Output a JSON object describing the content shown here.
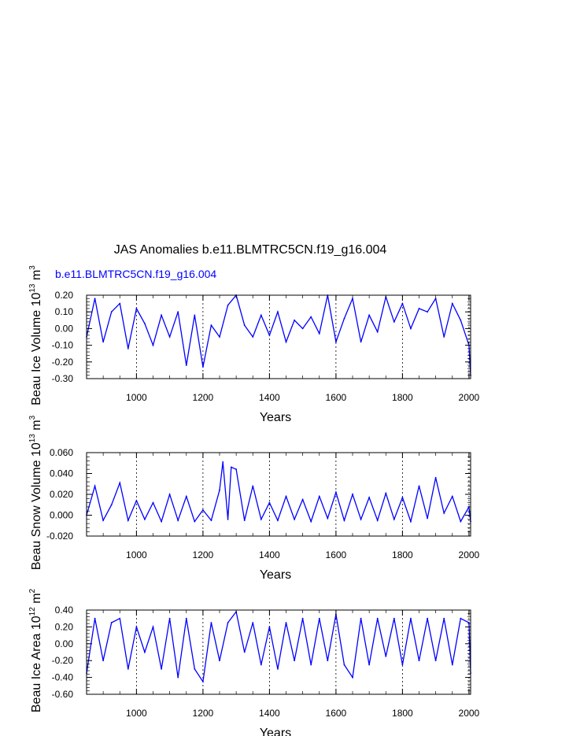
{
  "title": "JAS Anomalies b.e11.BLMTRC5CN.f19_g16.004",
  "series_name": "b.e11.BLMTRC5CN.f19_g16.004",
  "colors": {
    "series": "#0000ff",
    "axes": "#000000",
    "grid": "#000000"
  },
  "chart_data": [
    {
      "type": "line",
      "ylabel": "Beau Ice Volume 10",
      "ylabel_exp1": "13",
      "ylabel_unit": "m",
      "ylabel_exp2": "3",
      "xlabel": "Years",
      "xlim": [
        850,
        2005
      ],
      "ylim": [
        -0.3,
        0.2
      ],
      "yticks": [
        0.2,
        0.1,
        0.0,
        -0.1,
        -0.2,
        -0.3
      ],
      "ytick_labels": [
        "0.20",
        "0.10",
        "0.00",
        "-0.10",
        "-0.20",
        "-0.30"
      ],
      "xticks": [
        1000,
        1200,
        1400,
        1600,
        1800,
        2000
      ],
      "xtick_labels": [
        "1000",
        "1200",
        "1400",
        "1600",
        "1800",
        "2000"
      ],
      "grid": "dashed vertical at x ticks",
      "series": [
        {
          "name": "b.e11.BLMTRC5CN.f19_g16.004",
          "x": [
            850,
            875,
            900,
            925,
            950,
            975,
            1000,
            1025,
            1050,
            1075,
            1100,
            1125,
            1150,
            1175,
            1200,
            1225,
            1250,
            1275,
            1300,
            1325,
            1350,
            1375,
            1400,
            1425,
            1450,
            1475,
            1500,
            1525,
            1550,
            1575,
            1600,
            1625,
            1650,
            1675,
            1700,
            1725,
            1750,
            1775,
            1800,
            1825,
            1850,
            1875,
            1900,
            1925,
            1950,
            1975,
            2000,
            2005
          ],
          "y": [
            -0.05,
            0.18,
            -0.08,
            0.1,
            0.15,
            -0.12,
            0.12,
            0.03,
            -0.1,
            0.08,
            -0.05,
            0.1,
            -0.22,
            0.08,
            -0.23,
            0.02,
            -0.05,
            0.14,
            0.2,
            0.02,
            -0.05,
            0.08,
            -0.04,
            0.1,
            -0.08,
            0.05,
            0.0,
            0.07,
            -0.03,
            0.2,
            -0.08,
            0.06,
            0.18,
            -0.08,
            0.08,
            -0.02,
            0.19,
            0.04,
            0.15,
            0.0,
            0.12,
            0.1,
            0.18,
            -0.05,
            0.15,
            0.05,
            -0.1,
            -0.28
          ]
        }
      ]
    },
    {
      "type": "line",
      "ylabel": "Beau Snow Volume 10",
      "ylabel_exp1": "13",
      "ylabel_unit": "m",
      "ylabel_exp2": "3",
      "xlabel": "Years",
      "xlim": [
        850,
        2005
      ],
      "ylim": [
        -0.02,
        0.06
      ],
      "yticks": [
        0.06,
        0.04,
        0.02,
        0.0,
        -0.02
      ],
      "ytick_labels": [
        "0.060",
        "0.040",
        "0.020",
        "0.000",
        "-0.020"
      ],
      "xticks": [
        1000,
        1200,
        1400,
        1600,
        1800,
        2000
      ],
      "xtick_labels": [
        "1000",
        "1200",
        "1400",
        "1600",
        "1800",
        "2000"
      ],
      "grid": "dashed vertical at x ticks",
      "series": [
        {
          "name": "b.e11.BLMTRC5CN.f19_g16.004",
          "x": [
            850,
            875,
            900,
            925,
            950,
            975,
            1000,
            1025,
            1050,
            1075,
            1100,
            1125,
            1150,
            1175,
            1200,
            1225,
            1250,
            1260,
            1275,
            1285,
            1300,
            1325,
            1350,
            1375,
            1400,
            1425,
            1450,
            1475,
            1500,
            1525,
            1550,
            1575,
            1600,
            1625,
            1650,
            1675,
            1700,
            1725,
            1750,
            1775,
            1800,
            1825,
            1850,
            1875,
            1900,
            1925,
            1950,
            1975,
            2000,
            2005
          ],
          "y": [
            0.0,
            0.028,
            -0.005,
            0.01,
            0.031,
            -0.005,
            0.014,
            -0.004,
            0.012,
            -0.006,
            0.02,
            -0.005,
            0.018,
            -0.006,
            0.005,
            -0.005,
            0.024,
            0.051,
            -0.004,
            0.046,
            0.044,
            -0.005,
            0.028,
            -0.004,
            0.012,
            -0.005,
            0.018,
            -0.004,
            0.015,
            -0.006,
            0.018,
            -0.003,
            0.022,
            -0.005,
            0.02,
            -0.004,
            0.017,
            -0.005,
            0.021,
            -0.004,
            0.017,
            -0.006,
            0.028,
            -0.003,
            0.036,
            0.002,
            0.018,
            -0.006,
            0.008,
            -0.006
          ]
        }
      ]
    },
    {
      "type": "line",
      "ylabel": "Beau Ice Area 10",
      "ylabel_exp1": "12",
      "ylabel_unit": "m",
      "ylabel_exp2": "2",
      "xlabel": "Years",
      "xlim": [
        850,
        2005
      ],
      "ylim": [
        -0.6,
        0.4
      ],
      "yticks": [
        0.4,
        0.2,
        0.0,
        -0.2,
        -0.4,
        -0.6
      ],
      "ytick_labels": [
        "0.40",
        "0.20",
        "0.00",
        "-0.20",
        "-0.40",
        "-0.60"
      ],
      "xticks": [
        1000,
        1200,
        1400,
        1600,
        1800,
        2000
      ],
      "xtick_labels": [
        "1000",
        "1200",
        "1400",
        "1600",
        "1800",
        "2000"
      ],
      "grid": "dashed vertical at x ticks",
      "series": [
        {
          "name": "b.e11.BLMTRC5CN.f19_g16.004",
          "x": [
            850,
            875,
            900,
            925,
            950,
            975,
            1000,
            1025,
            1050,
            1075,
            1100,
            1125,
            1150,
            1175,
            1200,
            1225,
            1250,
            1275,
            1300,
            1325,
            1350,
            1375,
            1400,
            1425,
            1450,
            1475,
            1500,
            1525,
            1550,
            1575,
            1600,
            1625,
            1650,
            1675,
            1700,
            1725,
            1750,
            1775,
            1800,
            1825,
            1850,
            1875,
            1900,
            1925,
            1950,
            1975,
            2000,
            2005
          ],
          "y": [
            -0.35,
            0.3,
            -0.2,
            0.25,
            0.3,
            -0.3,
            0.2,
            -0.1,
            0.2,
            -0.3,
            0.3,
            -0.4,
            0.3,
            -0.3,
            -0.45,
            0.25,
            -0.2,
            0.25,
            0.38,
            -0.1,
            0.25,
            -0.25,
            0.2,
            -0.3,
            0.25,
            -0.2,
            0.3,
            -0.25,
            0.3,
            -0.2,
            0.35,
            -0.25,
            -0.4,
            0.3,
            -0.25,
            0.3,
            -0.15,
            0.3,
            -0.25,
            0.3,
            -0.2,
            0.3,
            -0.2,
            0.3,
            -0.25,
            0.3,
            0.25,
            -0.35
          ]
        }
      ]
    }
  ]
}
